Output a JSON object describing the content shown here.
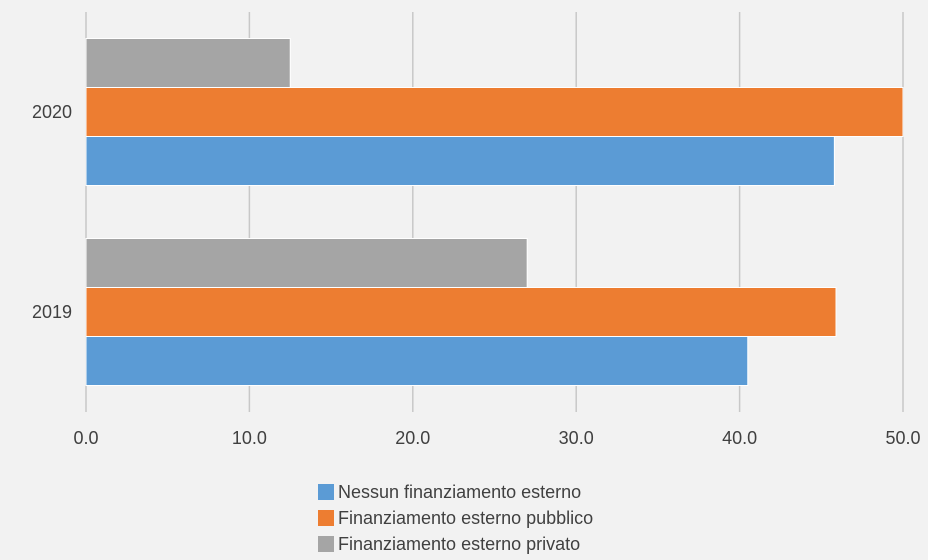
{
  "chart_data": {
    "type": "bar",
    "orientation": "horizontal",
    "categories": [
      "2020",
      "2019"
    ],
    "series": [
      {
        "name": "Finanziamento esterno privato",
        "color": "#a5a5a5",
        "values": [
          12.5,
          27.0
        ]
      },
      {
        "name": "Finanziamento esterno pubblico",
        "color": "#ed7d31",
        "values": [
          50.0,
          45.9
        ]
      },
      {
        "name": "Nessun finanziamento esterno",
        "color": "#5b9bd5",
        "values": [
          45.8,
          40.5
        ]
      }
    ],
    "x_ticks": [
      "0.0",
      "10.0",
      "20.0",
      "30.0",
      "40.0",
      "50.0"
    ],
    "xlim": [
      0,
      50
    ],
    "grid": "vertical",
    "legend_position": "bottom",
    "legend_order": [
      "Nessun finanziamento esterno",
      "Finanziamento esterno pubblico",
      "Finanziamento esterno privato"
    ]
  }
}
